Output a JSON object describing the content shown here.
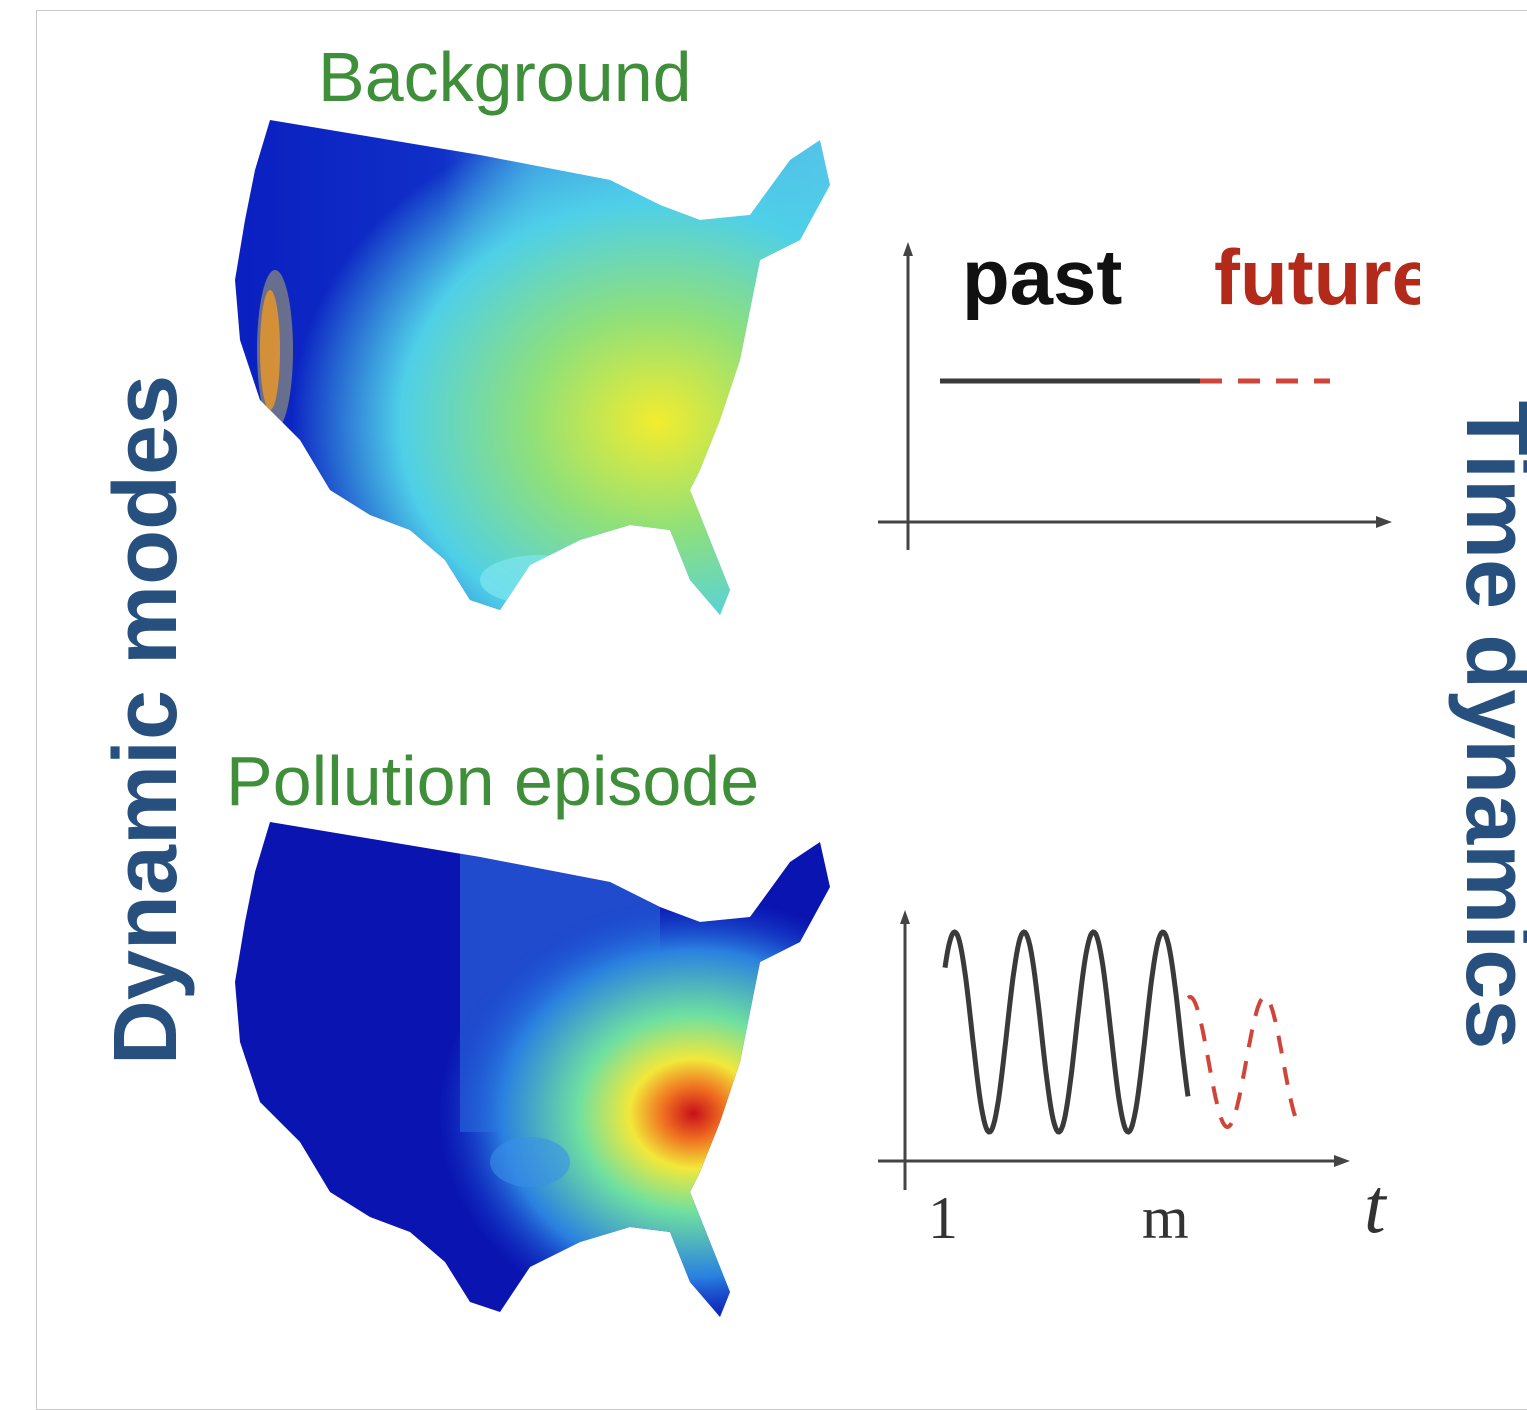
{
  "labels": {
    "dynamic_modes": "Dynamic modes",
    "time_dynamics": "Time dynamics",
    "background": "Background",
    "pollution_episode": "Pollution episode",
    "past": "past",
    "future": "future",
    "tick_start": "1",
    "tick_m": "m",
    "axis_t": "t"
  },
  "colors": {
    "axis_title": "#27507e",
    "map_title": "#3f8f3a",
    "past_line": "#3a3a3a",
    "future_line": "#b32a1a"
  },
  "chart_data": [
    {
      "type": "line",
      "panel": "background-mode-time-dynamics",
      "series": [
        {
          "name": "past",
          "style": "solid",
          "x": [
            0,
            1
          ],
          "y": [
            1,
            1
          ]
        },
        {
          "name": "future",
          "style": "dashed",
          "x": [
            1,
            1.5
          ],
          "y": [
            1,
            1
          ]
        }
      ]
    },
    {
      "type": "line",
      "panel": "pollution-mode-time-dynamics",
      "series": [
        {
          "name": "past",
          "style": "solid",
          "shape": "oscillation",
          "x_range": [
            "1",
            "m"
          ],
          "cycles": 3.5
        },
        {
          "name": "future",
          "style": "dashed",
          "shape": "oscillation",
          "cycles": 1.5
        }
      ]
    }
  ]
}
